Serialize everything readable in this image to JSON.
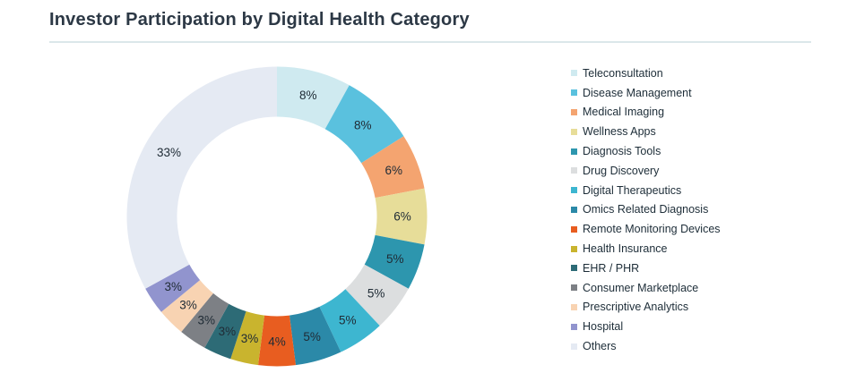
{
  "header": {
    "title": "Investor Participation by Digital Health Category"
  },
  "chart_data": {
    "type": "pie",
    "subtype": "donut",
    "title": "Investor Participation by Digital Health Category",
    "legend_position": "right",
    "start_angle_deg": 0,
    "direction": "clockwise",
    "categories": [
      "Teleconsultation",
      "Disease Management",
      "Medical Imaging",
      "Wellness Apps",
      "Diagnosis Tools",
      "Drug Discovery",
      "Digital Therapeutics",
      "Omics Related Diagnosis",
      "Remote Monitoring Devices",
      "Health Insurance",
      "EHR / PHR",
      "Consumer Marketplace",
      "Prescriptive Analytics",
      "Hospital",
      "Others"
    ],
    "values": [
      8,
      8,
      6,
      6,
      5,
      5,
      5,
      5,
      4,
      3,
      3,
      3,
      3,
      3,
      33
    ],
    "display_labels": [
      "8%",
      "8%",
      "6%",
      "6%",
      "5%",
      "5%",
      "5%",
      "5%",
      "4%",
      "3%",
      "3%",
      "3%",
      "3%",
      "3%",
      "33%"
    ],
    "colors": [
      "#cfeaf0",
      "#5ac1de",
      "#f4a470",
      "#e7dd99",
      "#2d96ae",
      "#dcdedf",
      "#3db6d0",
      "#2b89a8",
      "#e85d20",
      "#c9b42e",
      "#2d6b76",
      "#7d8085",
      "#f8d3b2",
      "#9194ce",
      "#e5eaf3"
    ]
  },
  "style": {
    "title_color": "#2c3845",
    "divider_color": "#dbe7ea",
    "label_color": "#202c36",
    "background": "#ffffff"
  }
}
